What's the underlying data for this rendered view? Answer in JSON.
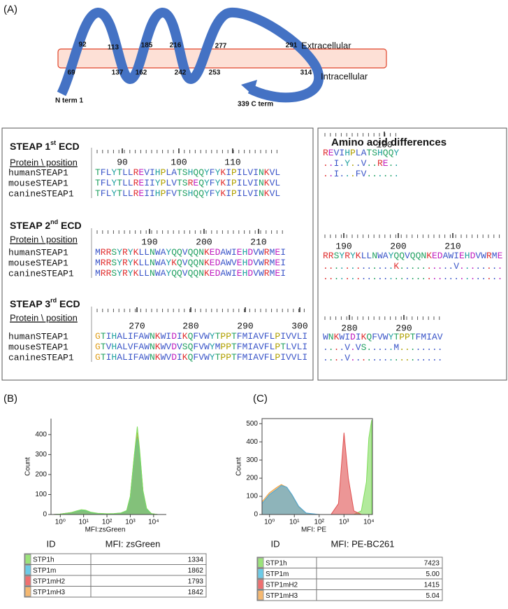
{
  "panel_labels": [
    "(A)",
    "(B)",
    "(C)"
  ],
  "topology": {
    "sites_top": [
      92,
      113,
      185,
      216,
      277,
      291
    ],
    "sites_bottom": [
      69,
      137,
      162,
      242,
      253,
      314
    ],
    "n_term": "N term 1",
    "c_term": "339 C term",
    "extracellular": "Extracellular",
    "intracellular": "Intracellular"
  },
  "alignment": {
    "header": "Protein \\ position",
    "sections": [
      {
        "title": [
          "STEAP 1",
          "st",
          " ECD"
        ],
        "ruler": [
          90,
          100,
          110
        ],
        "rows": [
          {
            "name": "humanSTEAP1",
            "seq": "TFLYTLLREVIHPLATSHQQYFYKIPILVINKVL"
          },
          {
            "name": "mouseSTEAP1",
            "seq": "TFLYTLLREIIYPLVTSREQYFYKIPILVINKVL"
          },
          {
            "name": "canineSTEAP1",
            "seq": "TFLYTLLREIIHPFVTSHQQYFYKIPILVINKVL"
          }
        ]
      },
      {
        "title": [
          "STEAP 2",
          "nd",
          " ECD"
        ],
        "ruler": [
          190,
          200,
          210
        ],
        "rows": [
          {
            "name": "humanSTEAP1",
            "seq": "MRRSYRYKLLNWAYQQVQQNKEDAWIEHDVWRMEI"
          },
          {
            "name": "mouseSTEAP1",
            "seq": "MRRSYRYKLLNWAYKQVQQNKEDAWVEHDVWRMEI"
          },
          {
            "name": "canineSTEAP1",
            "seq": "MRRSYRYKLLNWAYQQVQQNKEDAWIEHDVWRMEI"
          }
        ]
      },
      {
        "title": [
          "STEAP 3",
          "rd",
          " ECD"
        ],
        "ruler": [
          270,
          280,
          290,
          300
        ],
        "rows": [
          {
            "name": "humanSTEAP1",
            "seq": "GTIHALIFAWNKWIDIKQFVWYTPPTFMIAVFLPIVVLI"
          },
          {
            "name": "mouseSTEAP1",
            "seq": "GTVHALVFAWNKWVDVSQFVWYMPPTFMIAVFLPTLVLI"
          },
          {
            "name": "canineSTEAP1",
            "seq": "GTIHALIFAWNKWVDIKQFVWYTPPTFMIAVFLPIVVLI"
          }
        ]
      }
    ]
  },
  "differences": {
    "title": "Amino acid differences",
    "sections": [
      {
        "ruler": [
          100
        ],
        "rows": [
          "REVIHPLATSHQQY",
          "..I.Y..V..RE..",
          "..I...FV......"
        ]
      },
      {
        "ruler": [
          190,
          200,
          210
        ],
        "rows": [
          "RRSYRYKLLNWAYQQVQQNKEDAWIEHDVWRME",
          ".............K..........V........",
          "................................."
        ]
      },
      {
        "ruler": [
          280,
          290
        ],
        "rows": [
          "WNKWIDIKQFVWYTPPTFMIAV",
          "....V.VS.....M........",
          "....V................."
        ]
      }
    ]
  },
  "charts": [
    {
      "type": "area",
      "ylabel": "Count",
      "xlabel": "MFI:zsGreen",
      "log_x": true,
      "xlim": [
        0.4,
        35000
      ],
      "ylim": [
        0,
        480
      ],
      "xticks": [
        {
          "value": 1,
          "label": "10⁰"
        },
        {
          "value": 10,
          "label": "10¹"
        },
        {
          "value": 100,
          "label": "10²"
        },
        {
          "value": 1000,
          "label": "10³"
        },
        {
          "value": 10000,
          "label": "10⁴"
        }
      ],
      "yticks": [
        0,
        100,
        200,
        300,
        400
      ],
      "x": [
        0.5,
        1,
        3,
        5,
        8,
        12,
        20,
        40,
        100,
        200,
        400,
        700,
        1000,
        1500,
        2000,
        2500,
        3500,
        5000,
        8000,
        15000
      ],
      "series": [
        {
          "color": "#f0a040",
          "values": [
            0,
            2,
            10,
            17,
            21,
            19,
            11,
            5,
            3,
            4,
            7,
            18,
            88,
            300,
            410,
            320,
            118,
            28,
            4,
            0
          ]
        },
        {
          "color": "#e05050",
          "values": [
            0,
            2,
            9,
            15,
            19,
            17,
            10,
            5,
            3,
            4,
            7,
            18,
            85,
            290,
            390,
            310,
            115,
            28,
            4,
            0
          ]
        },
        {
          "color": "#4aa8d8",
          "values": [
            0,
            2,
            9,
            16,
            20,
            18,
            10,
            5,
            3,
            4,
            7,
            18,
            80,
            280,
            380,
            300,
            110,
            25,
            4,
            0
          ]
        },
        {
          "color": "#7fdc5a",
          "values": [
            0,
            2,
            10,
            18,
            24,
            22,
            12,
            6,
            4,
            5,
            8,
            20,
            90,
            300,
            440,
            330,
            120,
            30,
            5,
            0
          ]
        }
      ]
    },
    {
      "type": "area",
      "ylabel": "Count",
      "xlabel": "MFI: PE",
      "log_x": true,
      "xlim": [
        0.5,
        14000
      ],
      "ylim": [
        0,
        528
      ],
      "xticks": [
        {
          "value": 1,
          "label": "10⁰"
        },
        {
          "value": 10,
          "label": "10¹"
        },
        {
          "value": 100,
          "label": "10²"
        },
        {
          "value": 1000,
          "label": "10³"
        },
        {
          "value": 10000,
          "label": "10⁴"
        }
      ],
      "yticks": [
        0,
        100,
        200,
        300,
        400,
        500
      ],
      "x": [
        0.5,
        1,
        2,
        3,
        5,
        8,
        15,
        30,
        100,
        300,
        600,
        1000,
        1500,
        2500,
        5000,
        8000,
        10000,
        13000
      ],
      "series": [
        {
          "color": "#7fdc5a",
          "values": [
            0,
            0,
            0,
            0,
            0,
            0,
            0,
            0,
            0,
            0,
            0,
            0,
            0,
            0,
            20,
            180,
            420,
            520
          ]
        },
        {
          "color": "#e05050",
          "values": [
            0,
            0,
            0,
            0,
            0,
            0,
            0,
            0,
            0,
            0,
            60,
            450,
            200,
            20,
            0,
            0,
            0,
            0
          ]
        },
        {
          "color": "#f0a040",
          "values": [
            70,
            120,
            150,
            165,
            150,
            105,
            40,
            6,
            0,
            0,
            0,
            0,
            0,
            0,
            0,
            0,
            0,
            0
          ]
        },
        {
          "color": "#4aa8d8",
          "values": [
            60,
            110,
            140,
            160,
            150,
            110,
            45,
            8,
            0,
            0,
            0,
            0,
            0,
            0,
            0,
            0,
            0,
            0
          ]
        }
      ]
    }
  ],
  "tables": [
    {
      "headers": [
        "ID",
        "MFI: zsGreen"
      ],
      "rows": [
        {
          "id": "STP1h",
          "value": "1334",
          "color": "#9be37a"
        },
        {
          "id": "STP1m",
          "value": "1862",
          "color": "#6ccbe8"
        },
        {
          "id": "STP1mH2",
          "value": "1793",
          "color": "#ef6f6f"
        },
        {
          "id": "STP1mH3",
          "value": "1842",
          "color": "#f5b870"
        }
      ]
    },
    {
      "headers": [
        "ID",
        "MFI: PE-BC261"
      ],
      "rows": [
        {
          "id": "STP1h",
          "value": "7423",
          "color": "#9be37a"
        },
        {
          "id": "STP1m",
          "value": "5.00",
          "color": "#6ccbe8"
        },
        {
          "id": "STP1mH2",
          "value": "1415",
          "color": "#ef6f6f"
        },
        {
          "id": "STP1mH3",
          "value": "5.04",
          "color": "#f5b870"
        }
      ]
    }
  ]
}
